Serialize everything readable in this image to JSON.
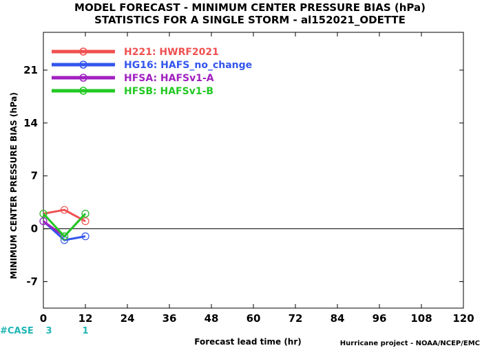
{
  "chart_data": {
    "type": "line",
    "title": "MODEL FORECAST - MINIMUM CENTER PRESSURE BIAS (hPa)",
    "subtitle": "STATISTICS FOR A SINGLE STORM - al152021_ODETTE",
    "xlabel": "Forecast lead time (hr)",
    "ylabel": "MINIMUM CENTER PRESSURE BIAS (hPa)",
    "xlim": [
      0,
      120
    ],
    "ylim": [
      -10.5,
      26
    ],
    "x_ticks": [
      0,
      12,
      24,
      36,
      48,
      60,
      72,
      84,
      96,
      108,
      120
    ],
    "y_ticks": [
      -7,
      0,
      7,
      14,
      21
    ],
    "zero_line": true,
    "grid": false,
    "legend_position": "top-left",
    "series": [
      {
        "name": "H221: HWRF2021",
        "color": "#f05050",
        "x": [
          0,
          6,
          12
        ],
        "y": [
          2.0,
          2.5,
          1.0
        ]
      },
      {
        "name": "HG16: HAFS_no_change",
        "color": "#3355ee",
        "x": [
          0,
          6,
          12
        ],
        "y": [
          1.0,
          -1.5,
          -1.0
        ]
      },
      {
        "name": "HFSA: HAFSv1-A",
        "color": "#a020c0",
        "x": [
          0,
          6,
          12
        ],
        "y": [
          1.0,
          -1.0,
          2.0
        ]
      },
      {
        "name": "HFSB: HAFSv1-B",
        "color": "#22c822",
        "x": [
          0,
          6,
          12
        ],
        "y": [
          2.0,
          -1.0,
          2.0
        ]
      }
    ],
    "cases": {
      "label": "#CASE",
      "x": [
        0,
        12
      ],
      "counts": [
        "3",
        "1"
      ]
    },
    "credit": "Hurricane project - NOAA/NCEP/EMC"
  }
}
